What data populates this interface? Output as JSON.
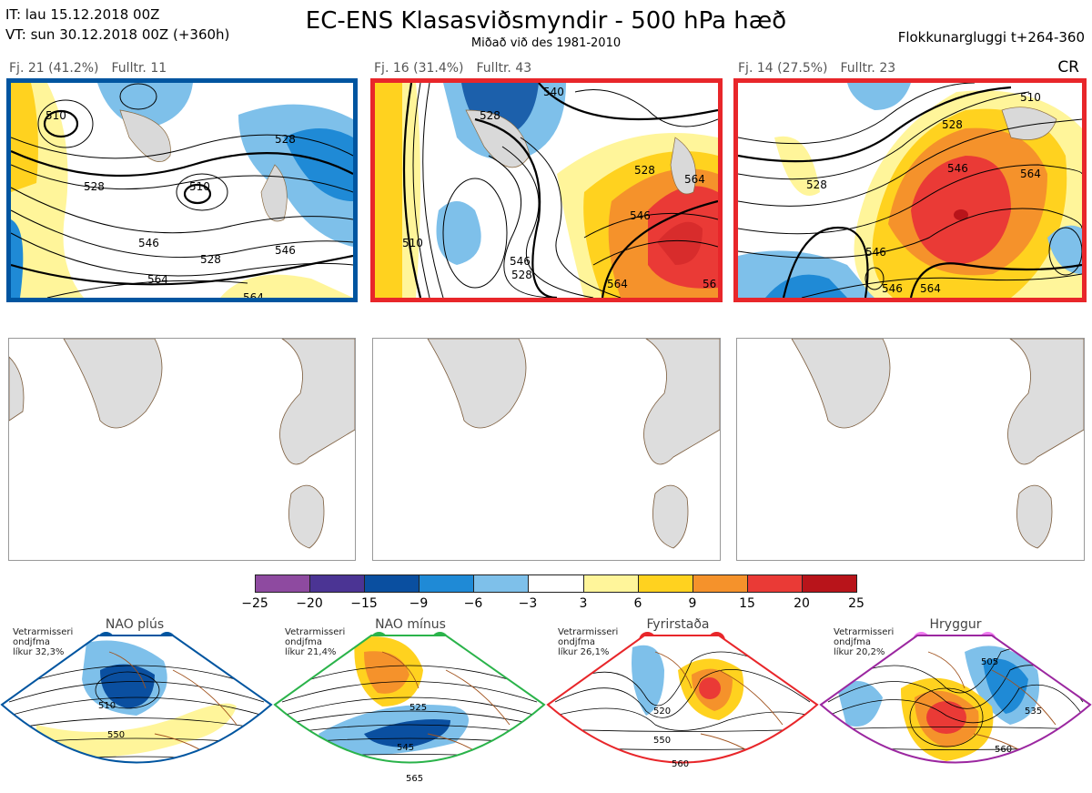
{
  "header": {
    "it_line": "IT: lau 15.12.2018 00Z",
    "vt_line": "VT: sun 30.12.2018 00Z  (+360h)",
    "title": "EC-ENS Klasasviðsmyndir - 500 hPa hæð",
    "subtitle": "Miðað við des 1981-2010",
    "window": "Flokkunargluggi t+264-360",
    "cr": "CR"
  },
  "panels": [
    {
      "count": "Fj. 21 (41.2%)",
      "rep": "Fulltr. 11",
      "border": "#0055a0",
      "contour_labels": [
        "510",
        "528",
        "528",
        "510",
        "546",
        "528",
        "546",
        "564",
        "564"
      ]
    },
    {
      "count": "Fj. 16 (31.4%)",
      "rep": "Fulltr. 43",
      "border": "#e8262a",
      "contour_labels": [
        "528",
        "540",
        "528",
        "510",
        "546",
        "528",
        "564",
        "564",
        "546",
        "56"
      ]
    },
    {
      "count": "Fj. 14 (27.5%)",
      "rep": "Fulltr. 23",
      "border": "#e8262a",
      "contour_labels": [
        "528",
        "510",
        "528",
        "546",
        "564",
        "546",
        "546",
        "564"
      ]
    }
  ],
  "colorbar": {
    "colors": [
      "#8e4aa0",
      "#4b3494",
      "#0a4fa0",
      "#1f8ad6",
      "#7ec0ea",
      "#ffffff",
      "#fff59a",
      "#ffd21f",
      "#f5922b",
      "#ea3a36",
      "#b8141a"
    ],
    "ticks": [
      "−25",
      "−20",
      "−15",
      "−9",
      "−6",
      "−3",
      "3",
      "6",
      "9",
      "15",
      "20",
      "25"
    ]
  },
  "regimes": [
    {
      "name": "NAO plús",
      "note": [
        "Vetrarmisseri",
        "ondjfma",
        "líkur 32,3%"
      ],
      "color": "#0055a0",
      "labels": [
        "510",
        "550"
      ]
    },
    {
      "name": "NAO mínus",
      "note": [
        "Vetrarmisseri",
        "ondjfma",
        "líkur 21,4%"
      ],
      "color": "#2ab34a",
      "labels": [
        "525",
        "545",
        "565"
      ]
    },
    {
      "name": "Fyrirstaða",
      "note": [
        "Vetrarmisseri",
        "ondjfma",
        "líkur 26,1%"
      ],
      "color": "#e8262a",
      "labels": [
        "520",
        "550",
        "560"
      ]
    },
    {
      "name": "Hryggur",
      "note": [
        "Vetrarmisseri",
        "ondjfma",
        "líkur 20,2%"
      ],
      "color": "#9b27a0",
      "labels": [
        "505",
        "535",
        "560"
      ]
    }
  ]
}
